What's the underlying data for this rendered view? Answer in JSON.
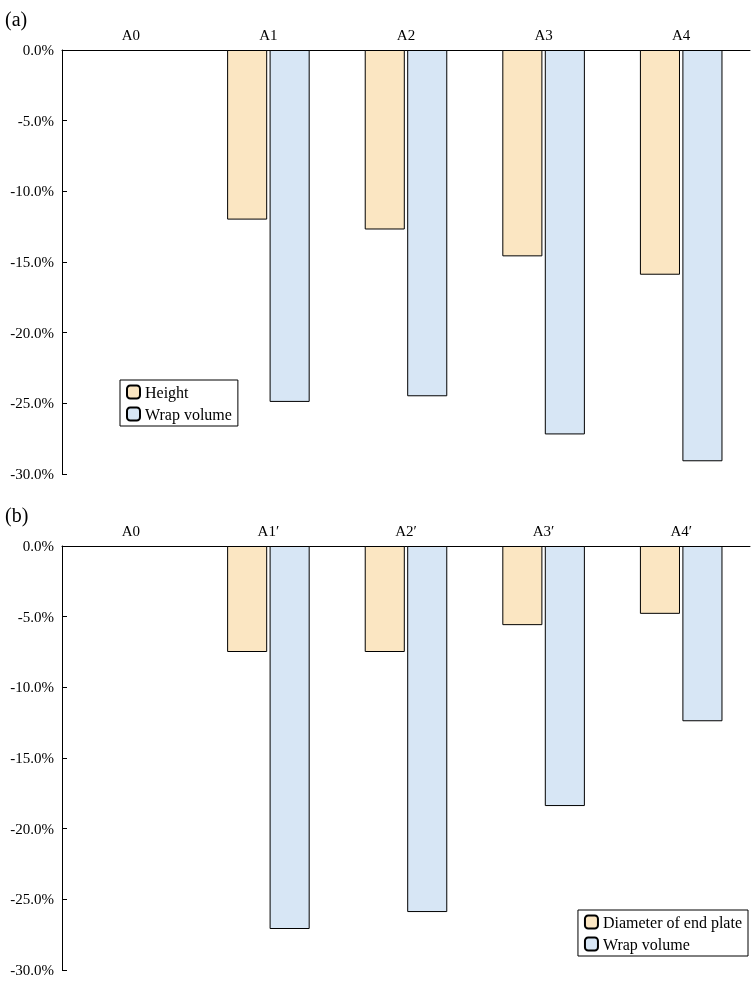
{
  "chart_data": [
    {
      "type": "bar",
      "title": "(a)",
      "categories": [
        "A0",
        "A1",
        "A2",
        "A3",
        "A4"
      ],
      "series": [
        {
          "name": "Height",
          "color": "#fbe6c2",
          "values": [
            null,
            -12.0,
            -12.7,
            -14.6,
            -15.9
          ]
        },
        {
          "name": "Wrap volume",
          "color": "#d7e6f5",
          "values": [
            null,
            -24.9,
            -24.5,
            -27.2,
            -29.1
          ]
        }
      ],
      "ylim": [
        -30,
        0
      ],
      "yticks": [
        {
          "value": 0,
          "label": "0.0%"
        },
        {
          "value": -5,
          "label": "-5.0%"
        },
        {
          "value": -10,
          "label": "-10.0%"
        },
        {
          "value": -15,
          "label": "-15.0%"
        },
        {
          "value": -20,
          "label": "-20.0%"
        },
        {
          "value": -25,
          "label": "-25.0%"
        },
        {
          "value": -30,
          "label": "-30.0%"
        }
      ],
      "grid": false,
      "legend": "bottom left"
    },
    {
      "type": "bar",
      "title": "(b)",
      "categories": [
        "A0",
        "A1′",
        "A2′",
        "A3′",
        "A4′"
      ],
      "series": [
        {
          "name": "Diameter of end plate",
          "color": "#fbe6c2",
          "values": [
            null,
            -7.5,
            -7.5,
            -5.6,
            -4.8
          ]
        },
        {
          "name": "Wrap volume",
          "color": "#d7e6f5",
          "values": [
            null,
            -27.1,
            -25.9,
            -18.4,
            -12.4
          ]
        }
      ],
      "ylim": [
        -30,
        0
      ],
      "yticks": [
        {
          "value": 0,
          "label": "0.0%"
        },
        {
          "value": -5,
          "label": "-5.0%"
        },
        {
          "value": -10,
          "label": "-10.0%"
        },
        {
          "value": -15,
          "label": "-15.0%"
        },
        {
          "value": -20,
          "label": "-20.0%"
        },
        {
          "value": -25,
          "label": "-25.0%"
        },
        {
          "value": -30,
          "label": "-30.0%"
        }
      ],
      "grid": false,
      "legend": "bottom right"
    }
  ]
}
